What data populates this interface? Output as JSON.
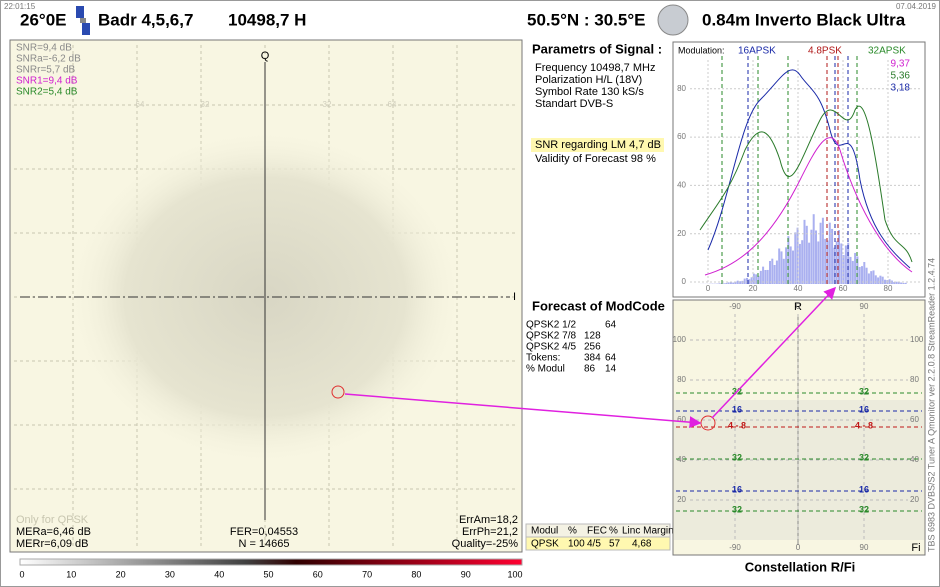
{
  "header": {
    "time": "22:01:15",
    "date": "07.04.2019",
    "orbit": "26°0E",
    "satellite": "Badr 4,5,6,7",
    "frequency": "10498,7  H",
    "location": "50.5°N : 30.5°E",
    "antenna": "0.84m  Inverto Black Ultra"
  },
  "constellation": {
    "axis_q": "Q",
    "axis_i": "I",
    "snr": [
      {
        "text": "SNR=9,4 dB",
        "color": "#8a8a8a"
      },
      {
        "text": "SNRa=-6,2 dB",
        "color": "#8a8a8a"
      },
      {
        "text": "SNRr=5,7 dB",
        "color": "#8a8a8a"
      },
      {
        "text": "SNR1=9,4 dB",
        "color": "#d020d0"
      },
      {
        "text": "SNR2=5,4 dB",
        "color": "#2a8a2a"
      }
    ],
    "grid_labels": [
      "64",
      "32",
      "32",
      "64"
    ],
    "note": "Only for QPSK",
    "mera": "MERa=6,46 dB",
    "merr": "MERr=6,09 dB",
    "fer": "FER=0,04553",
    "n": "N = 14665",
    "erram": "ErrAm=18,2",
    "errph": "ErrPh=21,2",
    "quality": "Quality=-25%"
  },
  "parameters": {
    "title": "Parametrs of Signal :",
    "lines": [
      "Frequency  10498,7 MHz",
      "Polarization  H/L (18V)",
      "Symbol Rate  130 kS/s",
      "Standart  DVB-S"
    ],
    "snr_lm": "SNR regarding LM  4,7 dB",
    "validity": "Validity of Forecast  98 %"
  },
  "forecast": {
    "title": "Forecast of ModCode",
    "rows": [
      [
        "QPSK2 1/2",
        "",
        "64"
      ],
      [
        "QPSK2 7/8",
        "128",
        ""
      ],
      [
        "QPSK2 4/5",
        "256",
        ""
      ],
      [
        "Tokens:",
        "384",
        "64"
      ],
      [
        "% Modul",
        "86",
        "14"
      ]
    ]
  },
  "summary": {
    "header": [
      "Modul",
      "%",
      "FEC",
      "%",
      "Linc Margin"
    ],
    "row": [
      "QPSK",
      "100",
      "4/5",
      "57",
      "4,68"
    ]
  },
  "spectrum": {
    "modulation": "Modulation:",
    "labels": [
      {
        "text": "16APSK",
        "color": "#1a2aa8"
      },
      {
        "text": "4.8PSK",
        "color": "#b01818"
      },
      {
        "text": "32APSK",
        "color": "#2a8a2a"
      }
    ],
    "legend": [
      {
        "text": "9,37",
        "color": "#d020d0"
      },
      {
        "text": "5,36",
        "color": "#2a7a2a"
      },
      {
        "text": "3,18",
        "color": "#1a2aa8"
      }
    ],
    "yticks": [
      "0",
      "20",
      "40",
      "60",
      "80"
    ],
    "xticks": [
      "0",
      "20",
      "40",
      "60",
      "80"
    ]
  },
  "polar": {
    "axis_r": "R",
    "axis_fi": "Fi",
    "xticks": [
      "-90",
      "0",
      "90"
    ],
    "yticks": [
      "100",
      "80",
      "60",
      "40",
      "20"
    ],
    "lines": [
      {
        "label": "32",
        "color": "#2a8a2a"
      },
      {
        "label": "16",
        "color": "#1a2aa8"
      },
      {
        "label": "4 - 8",
        "color": "#c01818"
      },
      {
        "label": "32",
        "color": "#2a8a2a"
      },
      {
        "label": "16",
        "color": "#1a2aa8"
      },
      {
        "label": "32",
        "color": "#2a8a2a"
      }
    ],
    "title": "Constellation  R/Fi"
  },
  "side_text": "TBS 6983 DVBS/S2 Tuner A    Qmonitor  ver 2.2.0.8    StreamReader 1.2.4.74",
  "scale": {
    "labels": [
      "0",
      "10",
      "20",
      "30",
      "40",
      "50",
      "60",
      "70",
      "80",
      "90",
      "100"
    ]
  }
}
